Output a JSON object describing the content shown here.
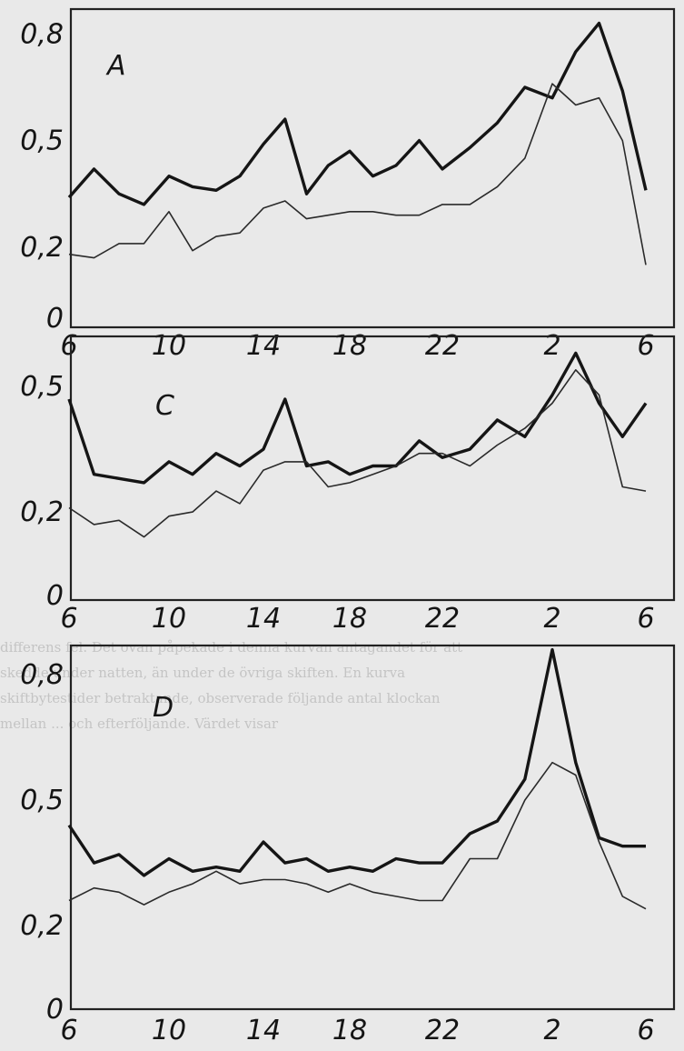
{
  "chart_data": [
    {
      "type": "line",
      "panel": "A",
      "x": [
        6,
        7,
        8,
        9,
        10,
        11,
        12,
        13,
        14,
        15,
        16,
        17,
        18,
        19,
        20,
        21,
        22,
        23,
        24,
        25,
        26,
        27,
        28,
        29,
        30
      ],
      "xticks": [
        "6",
        "10",
        "14",
        "18",
        "22",
        "2",
        "6"
      ],
      "yticks": [
        "0",
        "0,2",
        "0,5",
        "0,8"
      ],
      "ylim": [
        0,
        0.87
      ],
      "series": [
        {
          "values": [
            0.34,
            0.42,
            0.35,
            0.32,
            0.4,
            0.37,
            0.36,
            0.4,
            0.49,
            0.56,
            0.35,
            0.43,
            0.47,
            0.4,
            0.43,
            0.5,
            0.42,
            0.48,
            0.55,
            0.65,
            0.62,
            0.75,
            0.83,
            0.64,
            0.36
          ]
        },
        {
          "values": [
            0.18,
            0.17,
            0.21,
            0.21,
            0.3,
            0.19,
            0.23,
            0.24,
            0.31,
            0.33,
            0.28,
            0.29,
            0.3,
            0.3,
            0.29,
            0.29,
            0.32,
            0.32,
            0.37,
            0.45,
            0.66,
            0.6,
            0.62,
            0.5,
            0.15
          ]
        }
      ]
    },
    {
      "type": "line",
      "panel": "C",
      "x": [
        6,
        7,
        8,
        9,
        10,
        11,
        12,
        13,
        14,
        15,
        16,
        17,
        18,
        19,
        20,
        21,
        22,
        23,
        24,
        25,
        26,
        27,
        28,
        29,
        30
      ],
      "xticks": [
        "6",
        "10",
        "14",
        "18",
        "22",
        "2",
        "6"
      ],
      "yticks": [
        "0",
        "0,2",
        "0,5"
      ],
      "ylim": [
        0,
        0.62
      ],
      "series": [
        {
          "values": [
            0.47,
            0.29,
            0.28,
            0.27,
            0.32,
            0.29,
            0.34,
            0.31,
            0.35,
            0.47,
            0.31,
            0.32,
            0.29,
            0.31,
            0.31,
            0.37,
            0.33,
            0.35,
            0.42,
            0.38,
            0.48,
            0.58,
            0.46,
            0.38,
            0.46
          ]
        },
        {
          "values": [
            0.21,
            0.17,
            0.18,
            0.14,
            0.19,
            0.2,
            0.25,
            0.22,
            0.3,
            0.32,
            0.32,
            0.26,
            0.27,
            0.29,
            0.31,
            0.34,
            0.34,
            0.31,
            0.36,
            0.4,
            0.46,
            0.54,
            0.48,
            0.26,
            0.25
          ]
        }
      ]
    },
    {
      "type": "line",
      "panel": "D",
      "x": [
        6,
        7,
        8,
        9,
        10,
        11,
        12,
        13,
        14,
        15,
        16,
        17,
        18,
        19,
        20,
        21,
        22,
        23,
        24,
        25,
        26,
        27,
        28,
        29,
        30
      ],
      "xticks": [
        "6",
        "10",
        "14",
        "18",
        "22",
        "2",
        "6"
      ],
      "yticks": [
        "0",
        "0,2",
        "0,5",
        "0,8"
      ],
      "ylim": [
        0,
        0.87
      ],
      "series": [
        {
          "values": [
            0.44,
            0.35,
            0.37,
            0.32,
            0.36,
            0.33,
            0.34,
            0.33,
            0.4,
            0.35,
            0.36,
            0.33,
            0.34,
            0.33,
            0.36,
            0.35,
            0.35,
            0.42,
            0.45,
            0.55,
            0.86,
            0.59,
            0.41,
            0.39,
            0.39
          ]
        },
        {
          "values": [
            0.26,
            0.29,
            0.28,
            0.25,
            0.28,
            0.3,
            0.33,
            0.3,
            0.31,
            0.31,
            0.3,
            0.28,
            0.3,
            0.28,
            0.27,
            0.26,
            0.26,
            0.36,
            0.36,
            0.5,
            0.59,
            0.56,
            0.4,
            0.27,
            0.24
          ]
        }
      ]
    }
  ],
  "panels": {
    "A": {
      "label": "A"
    },
    "C": {
      "label": "C"
    },
    "D": {
      "label": "D"
    }
  }
}
